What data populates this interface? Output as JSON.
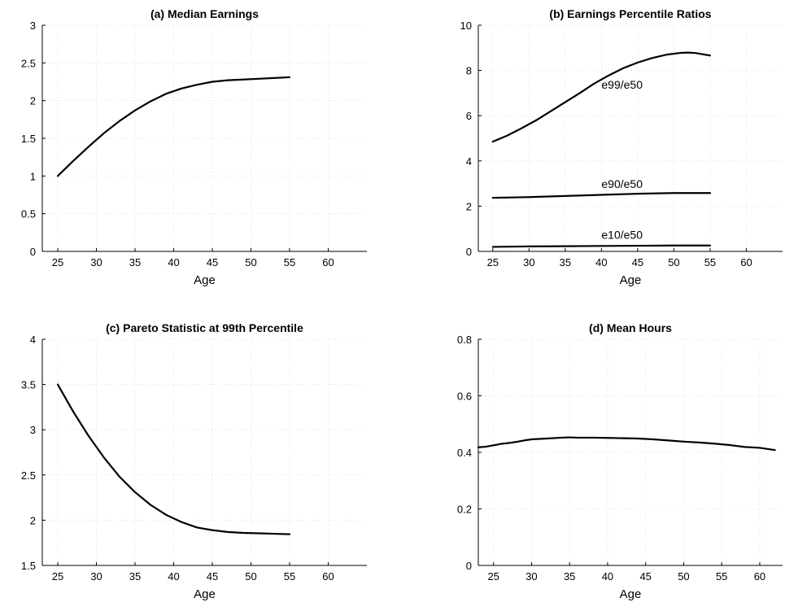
{
  "chart_data": [
    {
      "type": "line",
      "title": "(a) Median Earnings",
      "xlabel": "Age",
      "ylabel": "",
      "xlim": [
        23,
        65
      ],
      "ylim": [
        0,
        3
      ],
      "xticks": [
        "25",
        "30",
        "35",
        "40",
        "45",
        "50",
        "55",
        "60"
      ],
      "yticks": [
        "0",
        "0.5",
        "1",
        "1.5",
        "2",
        "2.5",
        "3"
      ],
      "grid": true,
      "series": [
        {
          "x": [
            25,
            27,
            29,
            31,
            33,
            35,
            37,
            39,
            41,
            43,
            45,
            47,
            49,
            51,
            53,
            55
          ],
          "values": [
            1.0,
            1.2,
            1.39,
            1.57,
            1.73,
            1.87,
            1.99,
            2.09,
            2.16,
            2.21,
            2.25,
            2.27,
            2.28,
            2.29,
            2.3,
            2.31
          ]
        }
      ]
    },
    {
      "type": "line",
      "title": "(b) Earnings Percentile Ratios",
      "xlabel": "Age",
      "ylabel": "",
      "xlim": [
        23,
        65
      ],
      "ylim": [
        0,
        10
      ],
      "xticks": [
        "25",
        "30",
        "35",
        "40",
        "45",
        "50",
        "55",
        "60"
      ],
      "yticks": [
        "0",
        "2",
        "4",
        "6",
        "8",
        "10"
      ],
      "grid": true,
      "series": [
        {
          "x": [
            25,
            27,
            29,
            31,
            33,
            35,
            37,
            39,
            41,
            43,
            45,
            47,
            49,
            51,
            52,
            53,
            55
          ],
          "values": [
            4.85,
            5.12,
            5.45,
            5.8,
            6.2,
            6.6,
            7.0,
            7.42,
            7.78,
            8.1,
            8.35,
            8.55,
            8.7,
            8.78,
            8.79,
            8.77,
            8.66
          ]
        },
        {
          "x": [
            25,
            30,
            35,
            40,
            45,
            50,
            55
          ],
          "values": [
            2.37,
            2.4,
            2.45,
            2.5,
            2.55,
            2.58,
            2.58
          ]
        },
        {
          "x": [
            25,
            30,
            35,
            40,
            45,
            50,
            55
          ],
          "values": [
            0.2,
            0.22,
            0.23,
            0.24,
            0.25,
            0.26,
            0.26
          ]
        }
      ],
      "annotations": [
        {
          "text": "e99/e50",
          "x": 40,
          "y": 7.2
        },
        {
          "text": "e90/e50",
          "x": 40,
          "y": 2.8
        },
        {
          "text": "e10/e50",
          "x": 40,
          "y": 0.55
        }
      ]
    },
    {
      "type": "line",
      "title": "(c) Pareto Statistic at 99th Percentile",
      "xlabel": "Age",
      "ylabel": "",
      "xlim": [
        23,
        65
      ],
      "ylim": [
        1.5,
        4
      ],
      "xticks": [
        "25",
        "30",
        "35",
        "40",
        "45",
        "50",
        "55",
        "60"
      ],
      "yticks": [
        "1.5",
        "2",
        "2.5",
        "3",
        "3.5",
        "4"
      ],
      "grid": true,
      "series": [
        {
          "x": [
            25,
            27,
            29,
            31,
            33,
            35,
            37,
            39,
            41,
            43,
            45,
            47,
            49,
            51,
            53,
            55
          ],
          "values": [
            3.5,
            3.2,
            2.93,
            2.69,
            2.48,
            2.31,
            2.17,
            2.06,
            1.98,
            1.92,
            1.89,
            1.87,
            1.86,
            1.855,
            1.85,
            1.845
          ]
        }
      ]
    },
    {
      "type": "line",
      "title": "(d) Mean Hours",
      "xlabel": "Age",
      "ylabel": "",
      "xlim": [
        23,
        63
      ],
      "ylim": [
        0,
        0.8
      ],
      "xticks": [
        "25",
        "30",
        "35",
        "40",
        "45",
        "50",
        "55",
        "60"
      ],
      "yticks": [
        "0",
        "0.2",
        "0.4",
        "0.6",
        "0.8"
      ],
      "grid": true,
      "series": [
        {
          "x": [
            23,
            24,
            25,
            26,
            27,
            28,
            29,
            30,
            32,
            34,
            35,
            36,
            38,
            40,
            42,
            44,
            46,
            48,
            50,
            52,
            54,
            56,
            58,
            60,
            62
          ],
          "values": [
            0.418,
            0.42,
            0.425,
            0.43,
            0.433,
            0.437,
            0.442,
            0.446,
            0.449,
            0.452,
            0.453,
            0.452,
            0.452,
            0.451,
            0.45,
            0.449,
            0.446,
            0.442,
            0.438,
            0.435,
            0.431,
            0.426,
            0.419,
            0.416,
            0.408
          ]
        }
      ]
    }
  ]
}
